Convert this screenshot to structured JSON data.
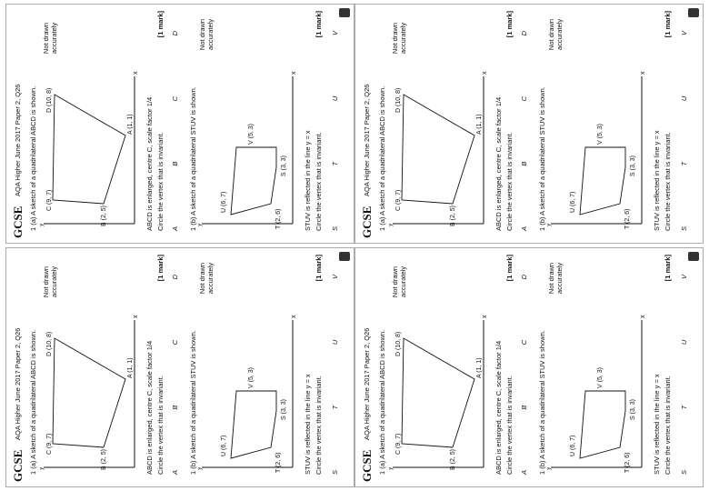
{
  "brand": "GCSE",
  "header": "AQA Higher June 2017 Paper 2, Q26",
  "q_a": {
    "prompt": "1 (a) A sketch of a quadrilateral ABCD is shown.",
    "note": "Not drawn accurately",
    "points": {
      "A": "A (1, 1)",
      "B": "B (2, 5)",
      "C": "C (9, 7)",
      "D": "D (10, 8)"
    },
    "axis_x": "x",
    "axis_y": "y",
    "instruction": "ABCD is enlarged, centre C, scale factor 1/4",
    "circle": "Circle the vertex that is invariant.",
    "mark": "[1 mark]",
    "choices": [
      "A",
      "B",
      "C",
      "D"
    ]
  },
  "q_b": {
    "prompt": "1 (b) A sketch of a quadrilateral STUV is shown.",
    "note": "Not drawn accurately",
    "points": {
      "S": "S (3, 3)",
      "T": "T (2, 6)",
      "U": "U (6, 7)",
      "V": "V (5, 3)"
    },
    "instruction": "STUV is reflected in the line y = x",
    "circle": "Circle the vertex that is invariant.",
    "mark": "[1 mark]",
    "choices": [
      "S",
      "T",
      "U",
      "V"
    ]
  }
}
